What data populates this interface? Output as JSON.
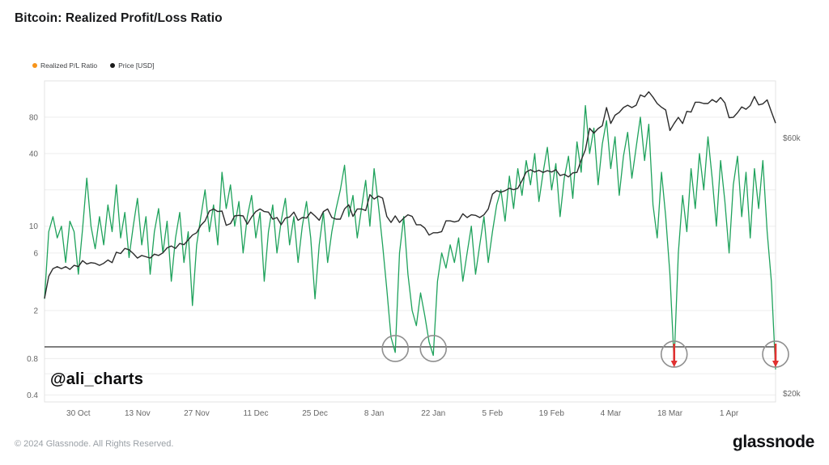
{
  "header": {
    "title": "Bitcoin: Realized Profit/Loss Ratio"
  },
  "legend": [
    {
      "label": "Realized P/L Ratio",
      "color": "#f7941a"
    },
    {
      "label": "Price [USD]",
      "color": "#1a1a1a"
    }
  ],
  "watermark": "@ali_charts",
  "footer": {
    "copyright": "© 2024 Glassnode. All Rights Reserved.",
    "brand": "glassnode"
  },
  "chart_data": {
    "type": "line",
    "title": "Bitcoin: Realized Profit/Loss Ratio",
    "x_unit": "day",
    "grid": "horizontal",
    "legend_position": "top-left",
    "colors": {
      "ratio_line": "#1fa25c",
      "price_line": "#2b2b2b",
      "baseline": "#1f1f1f",
      "grid": "#ededed",
      "annotation_circle": "#8f8f8f",
      "annotation_arrow": "#e03131",
      "tick_text": "#666666"
    },
    "x_ticks": [
      {
        "day": 8,
        "label": "30 Oct"
      },
      {
        "day": 22,
        "label": "13 Nov"
      },
      {
        "day": 36,
        "label": "27 Nov"
      },
      {
        "day": 50,
        "label": "11 Dec"
      },
      {
        "day": 64,
        "label": "25 Dec"
      },
      {
        "day": 78,
        "label": "8 Jan"
      },
      {
        "day": 92,
        "label": "22 Jan"
      },
      {
        "day": 106,
        "label": "5 Feb"
      },
      {
        "day": 120,
        "label": "19 Feb"
      },
      {
        "day": 134,
        "label": "4 Mar"
      },
      {
        "day": 148,
        "label": "18 Mar"
      },
      {
        "day": 162,
        "label": "1 Apr"
      }
    ],
    "y_left": {
      "scale": "log",
      "domain": [
        0.35,
        160
      ],
      "ticks": [
        {
          "v": 80,
          "label": "80"
        },
        {
          "v": 40,
          "label": "40"
        },
        {
          "v": 20,
          "label": ""
        },
        {
          "v": 10,
          "label": "10"
        },
        {
          "v": 6,
          "label": "6"
        },
        {
          "v": 4,
          "label": ""
        },
        {
          "v": 2,
          "label": "2"
        },
        {
          "v": 0.8,
          "label": "0.8"
        },
        {
          "v": 0.6,
          "label": ""
        },
        {
          "v": 0.4,
          "label": "0.4"
        }
      ]
    },
    "y_right": {
      "scale": "log",
      "domain": [
        19.3,
        76.6
      ],
      "ticks": [
        {
          "v": 60,
          "label": "$60k"
        },
        {
          "v": 20,
          "label": "$20k"
        }
      ]
    },
    "baseline": 1,
    "series": [
      {
        "name": "Realized P/L Ratio",
        "axis": "left",
        "color": "#1fa25c",
        "values": [
          2.5,
          9,
          12,
          8,
          10,
          5,
          11,
          9,
          4,
          9.5,
          25,
          10,
          6.5,
          12,
          7,
          15,
          9,
          22,
          8,
          13,
          5.5,
          10,
          17,
          7,
          12,
          4,
          9,
          14,
          6,
          11,
          3.5,
          8,
          13,
          5,
          9,
          2.2,
          7,
          12,
          20,
          9,
          15,
          7,
          28,
          14,
          22,
          10,
          16,
          6,
          12,
          18,
          8,
          13,
          3.5,
          9,
          15,
          6,
          11,
          17,
          7,
          12,
          5,
          10,
          16,
          8,
          2.5,
          7,
          13,
          5,
          9,
          14,
          20,
          32,
          12,
          18,
          8,
          14,
          24,
          10,
          30,
          15,
          7,
          3,
          1.2,
          0.9,
          6,
          12,
          4,
          2,
          1.5,
          2.8,
          1.8,
          1.1,
          0.85,
          3.5,
          6,
          4.5,
          7,
          5,
          8,
          3.5,
          6,
          10,
          4,
          7,
          12,
          5,
          9,
          15,
          20,
          11,
          26,
          14,
          30,
          18,
          35,
          22,
          40,
          16,
          28,
          45,
          20,
          33,
          12,
          25,
          38,
          17,
          50,
          28,
          100,
          40,
          65,
          22,
          48,
          75,
          30,
          55,
          18,
          38,
          60,
          25,
          45,
          80,
          35,
          70,
          15,
          8,
          28,
          12,
          4,
          0.75,
          6,
          18,
          9,
          30,
          14,
          40,
          20,
          55,
          25,
          10,
          35,
          16,
          6,
          22,
          38,
          12,
          28,
          8,
          30,
          14,
          35,
          9,
          3.5,
          0.65
        ]
      },
      {
        "name": "Price [USD]",
        "axis": "right",
        "unit": "k USD",
        "color": "#2b2b2b",
        "values": [
          30.1,
          33.1,
          34.2,
          34.5,
          34.2,
          34.5,
          34.1,
          34.7,
          34.5,
          35.4,
          34.9,
          35.1,
          35.0,
          34.7,
          35.0,
          35.5,
          35.1,
          36.7,
          36.5,
          37.3,
          37.1,
          36.5,
          35.8,
          36.2,
          36.0,
          35.8,
          36.4,
          36.2,
          36.6,
          37.4,
          37.7,
          37.3,
          38.1,
          37.9,
          38.7,
          39.5,
          39.9,
          41.2,
          42.0,
          43.8,
          44.2,
          43.7,
          43.8,
          41.2,
          41.5,
          42.9,
          43.0,
          42.9,
          41.4,
          42.7,
          43.7,
          44.2,
          43.7,
          43.6,
          42.3,
          42.6,
          41.3,
          42.5,
          42.7,
          43.6,
          42.1,
          42.6,
          42.5,
          43.6,
          42.9,
          42.1,
          43.7,
          44.2,
          42.6,
          42.3,
          42.3,
          44.2,
          45.0,
          42.8,
          44.2,
          44.2,
          43.9,
          47.0,
          46.1,
          46.7,
          46.3,
          42.8,
          41.7,
          42.9,
          41.7,
          42.5,
          43.1,
          42.8,
          41.3,
          41.3,
          40.7,
          39.5,
          39.9,
          39.9,
          40.1,
          42.0,
          42.0,
          41.8,
          42.0,
          43.3,
          42.6,
          43.1,
          43.0,
          42.6,
          43.1,
          44.2,
          47.1,
          47.8,
          47.5,
          47.8,
          48.3,
          48.0,
          48.3,
          49.9,
          51.8,
          52.3,
          51.8,
          52.2,
          51.7,
          52.1,
          51.8,
          52.3,
          51.0,
          51.3,
          50.7,
          51.6,
          51.7,
          54.5,
          57.0,
          62.5,
          61.2,
          62.4,
          63.2,
          68.3,
          63.8,
          66.1,
          66.9,
          68.3,
          69.0,
          68.3,
          69.0,
          72.1,
          71.5,
          73.1,
          71.4,
          69.5,
          68.4,
          67.6,
          61.9,
          63.8,
          65.5,
          63.8,
          67.2,
          67.0,
          69.9,
          69.9,
          69.5,
          69.5,
          70.7,
          69.9,
          71.3,
          69.7,
          65.4,
          65.5,
          66.8,
          68.5,
          67.8,
          68.9,
          71.6,
          69.1,
          69.4,
          70.6,
          67.1,
          63.9
        ]
      }
    ],
    "annotations": [
      {
        "day": 83,
        "circle": true,
        "dy": 2,
        "arrow": false
      },
      {
        "day": 92,
        "circle": true,
        "dy": 2,
        "arrow": false
      },
      {
        "day": 149,
        "circle": true,
        "dy": 9,
        "arrow": true
      },
      {
        "day": 173,
        "circle": true,
        "dy": 9,
        "arrow": true
      }
    ]
  }
}
